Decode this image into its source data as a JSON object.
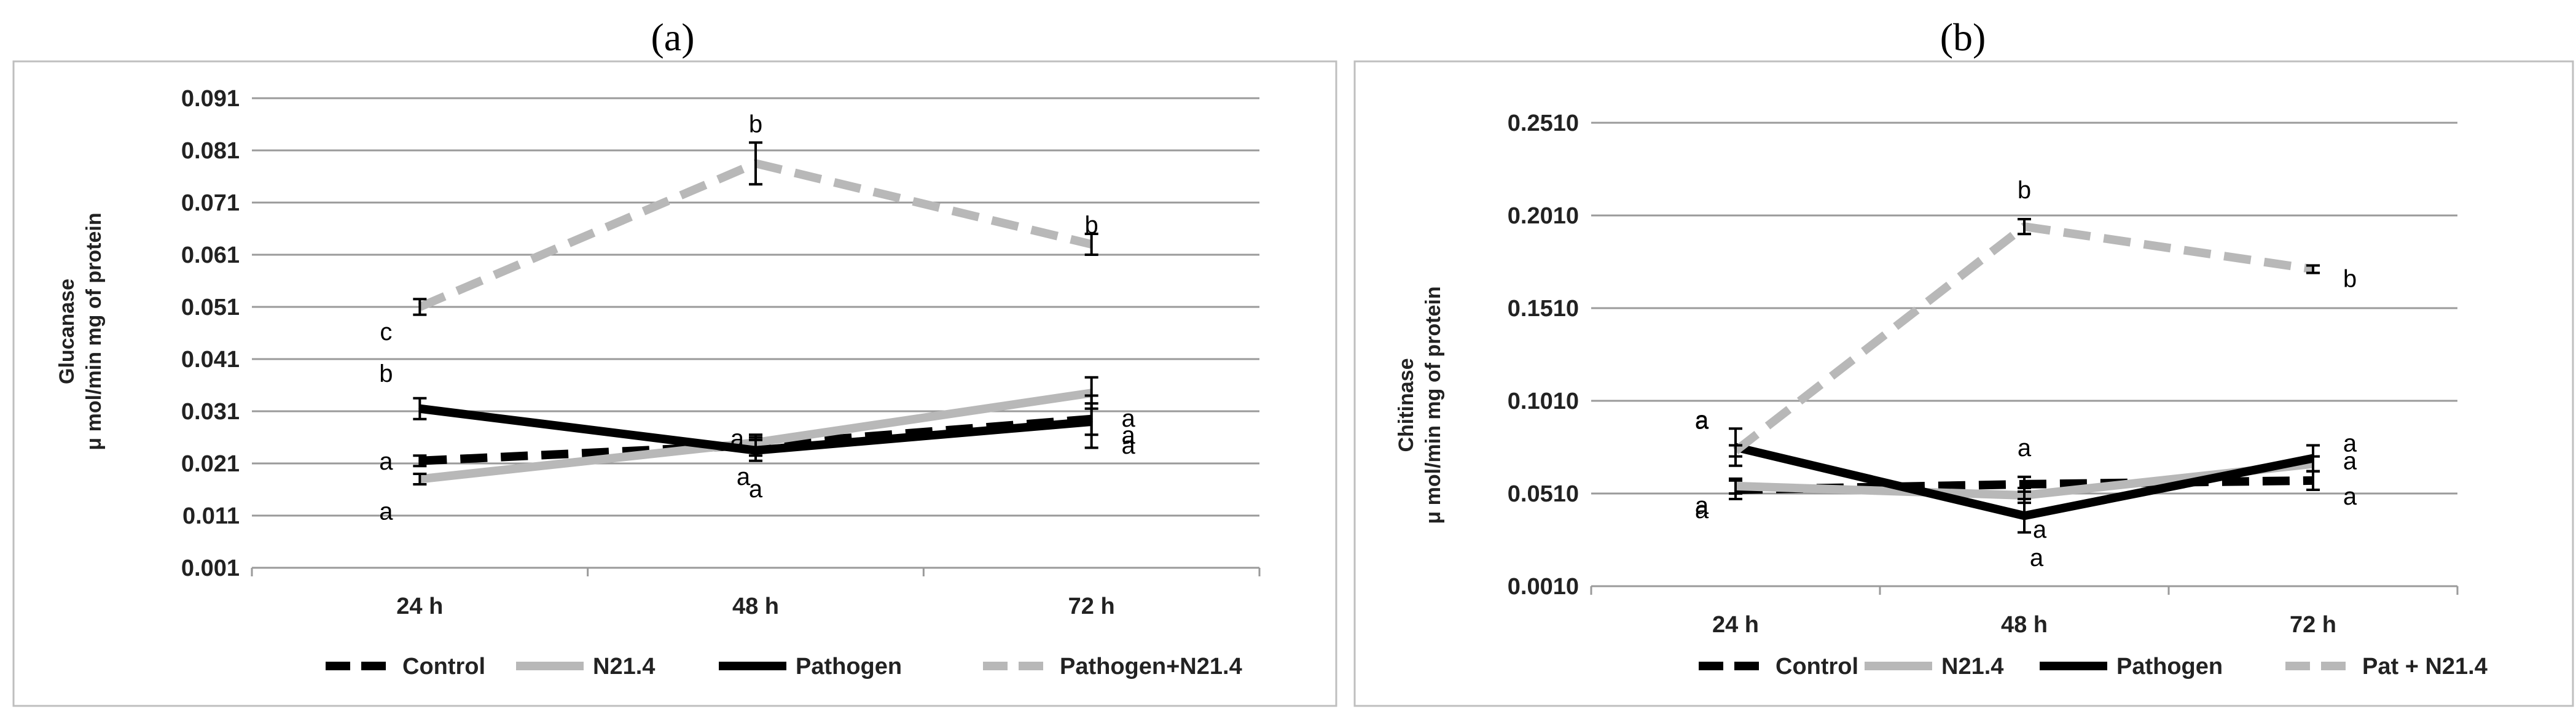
{
  "chart_data": [
    {
      "type": "line",
      "panel_label": "(a)",
      "panel_letter": "a",
      "ylabel_line1": "Glucanase",
      "ylabel_line2": "μ mol/min  mg of protein",
      "categories": [
        "24 h",
        "48 h",
        "72 h"
      ],
      "ylim": [
        0.001,
        0.091
      ],
      "yticks": [
        "0.001",
        "0.011",
        "0.021",
        "0.031",
        "0.041",
        "0.051",
        "0.061",
        "0.071",
        "0.081",
        "0.091"
      ],
      "grid": true,
      "legend_position": "bottom",
      "series": [
        {
          "name": "Control",
          "style": "dashed-black",
          "values": [
            0.0215,
            0.0245,
            0.0295
          ],
          "errors": [
            0.001,
            0.002,
            0.003
          ],
          "labels": [
            "a",
            "a",
            "a"
          ]
        },
        {
          "name": "N21.4",
          "style": "solid-gray",
          "values": [
            0.018,
            0.025,
            0.0345
          ],
          "errors": [
            0.001,
            0.001,
            0.003
          ],
          "labels": [
            "a",
            "a",
            "a"
          ]
        },
        {
          "name": "Pathogen",
          "style": "solid-black",
          "values": [
            0.0315,
            0.0235,
            0.029
          ],
          "errors": [
            0.002,
            0.002,
            0.005
          ],
          "labels": [
            "b",
            "a",
            "a"
          ]
        },
        {
          "name": "Pathogen+N21.4",
          "style": "dashed-gray",
          "values": [
            0.051,
            0.0785,
            0.063
          ],
          "errors": [
            0.0015,
            0.004,
            0.002
          ],
          "labels": [
            "c",
            "b",
            "b"
          ]
        }
      ]
    },
    {
      "type": "line",
      "panel_label": "(b)",
      "panel_letter": "b",
      "ylabel_line1": "Chitinase",
      "ylabel_line2": "μ mol/min  mg of protein",
      "categories": [
        "24 h",
        "48 h",
        "72 h"
      ],
      "ylim": [
        0.001,
        0.251
      ],
      "yticks": [
        "0.0010",
        "0.0510",
        "0.1010",
        "0.1510",
        "0.2010",
        "0.2510"
      ],
      "grid": true,
      "legend_position": "bottom",
      "series": [
        {
          "name": "Control",
          "style": "dashed-black",
          "values": [
            0.053,
            0.056,
            0.058
          ],
          "errors": [
            0.005,
            0.004,
            0.005
          ],
          "labels": [
            "a",
            "a",
            "a"
          ]
        },
        {
          "name": "N21.4",
          "style": "solid-gray",
          "values": [
            0.055,
            0.05,
            0.067
          ],
          "errors": [
            0.004,
            0.004,
            0.004
          ],
          "labels": [
            "a",
            "a",
            "a"
          ]
        },
        {
          "name": "Pathogen",
          "style": "solid-black",
          "values": [
            0.076,
            0.039,
            0.07
          ],
          "errors": [
            0.01,
            0.009,
            0.007
          ],
          "labels": [
            "a",
            "a",
            "a"
          ]
        },
        {
          "name": "Pat + N21.4",
          "style": "dashed-gray",
          "values": [
            0.074,
            0.195,
            0.172
          ],
          "errors": [
            0.003,
            0.004,
            0.002
          ],
          "labels": [
            "a",
            "b",
            "b"
          ]
        }
      ]
    }
  ]
}
